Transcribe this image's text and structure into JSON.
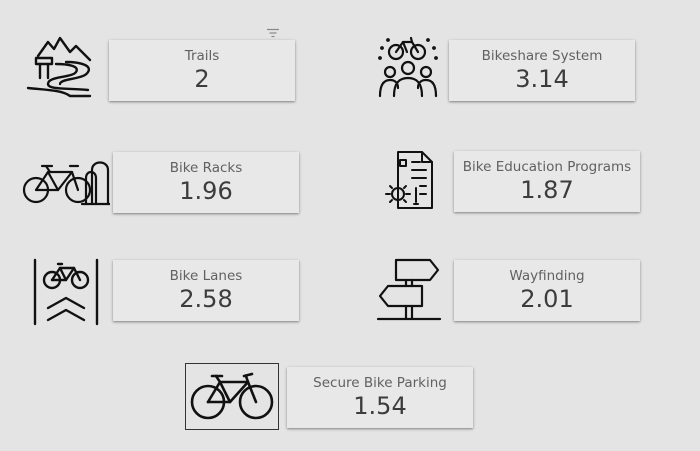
{
  "filter_icon": "filter-icon",
  "metrics": {
    "trails": {
      "label": "Trails",
      "value": "2",
      "icon": "mountain-trail-icon"
    },
    "bikeshare": {
      "label": "Bikeshare System",
      "value": "3.14",
      "icon": "bikeshare-people-icon"
    },
    "racks": {
      "label": "Bike Racks",
      "value": "1.96",
      "icon": "bike-rack-icon"
    },
    "education": {
      "label": "Bike Education Programs",
      "value": "1.87",
      "icon": "document-gear-icon"
    },
    "lanes": {
      "label": "Bike Lanes",
      "value": "2.58",
      "icon": "bike-lane-icon"
    },
    "wayfinding": {
      "label": "Wayfinding",
      "value": "2.01",
      "icon": "signpost-icon"
    },
    "parking": {
      "label": "Secure Bike Parking",
      "value": "1.54",
      "icon": "bicycle-icon"
    }
  }
}
